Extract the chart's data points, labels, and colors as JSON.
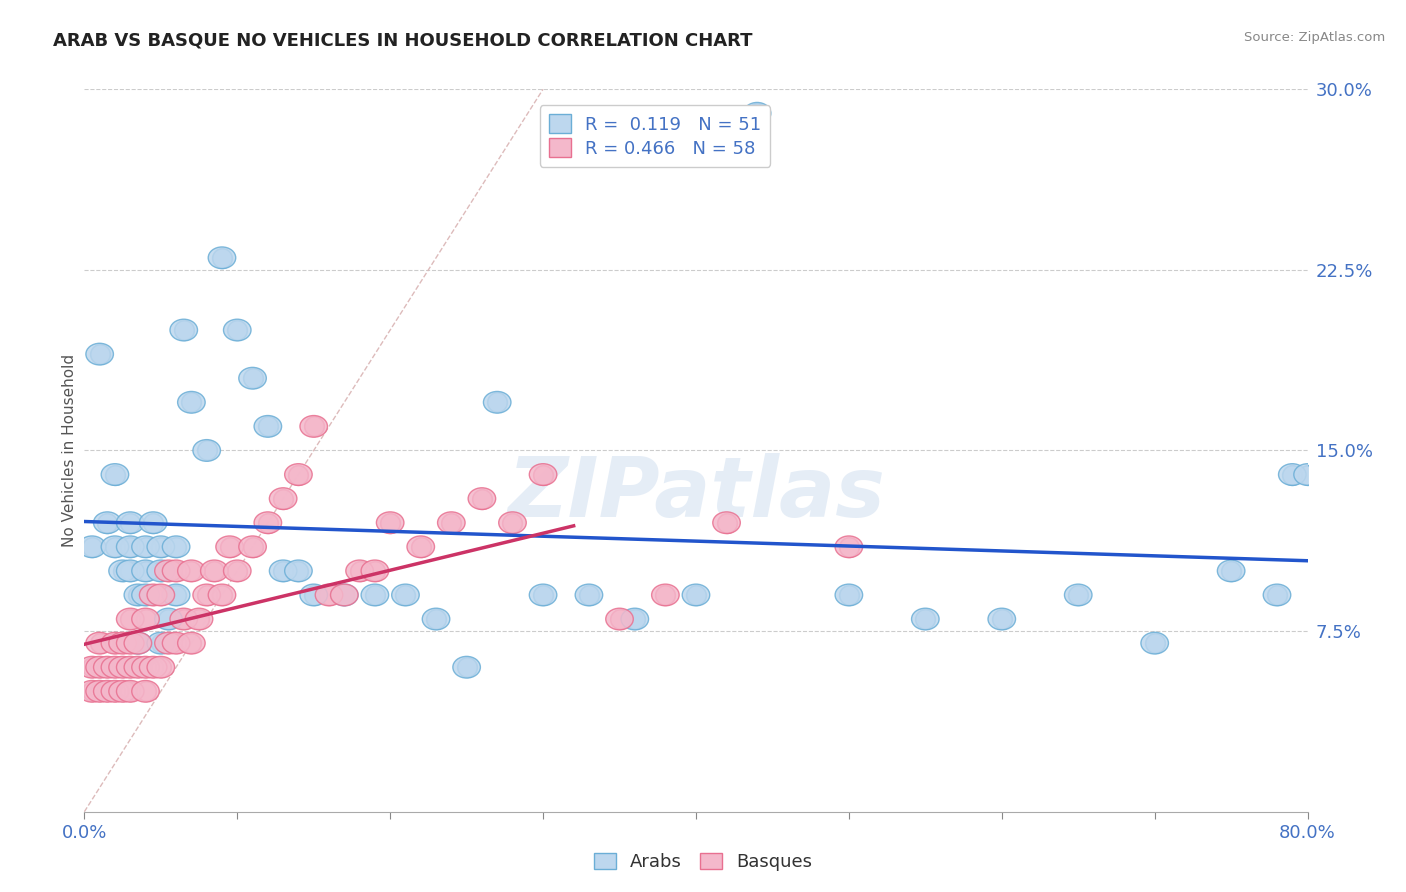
{
  "title": "ARAB VS BASQUE NO VEHICLES IN HOUSEHOLD CORRELATION CHART",
  "source": "Source: ZipAtlas.com",
  "ylabel": "No Vehicles in Household",
  "xlim": [
    0.0,
    0.8
  ],
  "ylim": [
    0.0,
    0.3
  ],
  "ytick_positions": [
    0.075,
    0.15,
    0.225,
    0.3
  ],
  "ytick_labels": [
    "7.5%",
    "15.0%",
    "22.5%",
    "30.0%"
  ],
  "grid_color": "#cccccc",
  "background_color": "#ffffff",
  "arab_color": "#6baed6",
  "arab_fill": "#bdd7ee",
  "basque_color": "#e87090",
  "basque_fill": "#f4b8cb",
  "diagonal_color": "#ddbbbb",
  "arab_R": 0.119,
  "arab_N": 51,
  "basque_R": 0.466,
  "basque_N": 58,
  "legend_text_color": "#4472c4",
  "watermark": "ZIPatlas",
  "arab_line_color": "#2255cc",
  "basque_line_color": "#cc3366",
  "arab_scatter_x": [
    0.005,
    0.01,
    0.015,
    0.02,
    0.02,
    0.025,
    0.03,
    0.03,
    0.03,
    0.035,
    0.035,
    0.04,
    0.04,
    0.04,
    0.045,
    0.05,
    0.05,
    0.05,
    0.055,
    0.06,
    0.06,
    0.065,
    0.07,
    0.08,
    0.09,
    0.1,
    0.11,
    0.12,
    0.13,
    0.14,
    0.15,
    0.17,
    0.19,
    0.21,
    0.23,
    0.25,
    0.27,
    0.3,
    0.33,
    0.36,
    0.4,
    0.44,
    0.5,
    0.55,
    0.6,
    0.65,
    0.7,
    0.75,
    0.78,
    0.79,
    0.8
  ],
  "arab_scatter_y": [
    0.11,
    0.19,
    0.12,
    0.14,
    0.11,
    0.1,
    0.12,
    0.11,
    0.1,
    0.09,
    0.07,
    0.11,
    0.1,
    0.09,
    0.12,
    0.11,
    0.1,
    0.07,
    0.08,
    0.11,
    0.09,
    0.2,
    0.17,
    0.15,
    0.23,
    0.2,
    0.18,
    0.16,
    0.1,
    0.1,
    0.09,
    0.09,
    0.09,
    0.09,
    0.08,
    0.06,
    0.17,
    0.09,
    0.09,
    0.08,
    0.09,
    0.29,
    0.09,
    0.08,
    0.08,
    0.09,
    0.07,
    0.1,
    0.09,
    0.14,
    0.14
  ],
  "basque_scatter_x": [
    0.005,
    0.005,
    0.01,
    0.01,
    0.01,
    0.015,
    0.015,
    0.02,
    0.02,
    0.02,
    0.025,
    0.025,
    0.025,
    0.03,
    0.03,
    0.03,
    0.03,
    0.035,
    0.035,
    0.04,
    0.04,
    0.04,
    0.045,
    0.045,
    0.05,
    0.05,
    0.055,
    0.055,
    0.06,
    0.06,
    0.065,
    0.07,
    0.07,
    0.075,
    0.08,
    0.085,
    0.09,
    0.095,
    0.1,
    0.11,
    0.12,
    0.13,
    0.14,
    0.15,
    0.16,
    0.17,
    0.18,
    0.19,
    0.2,
    0.22,
    0.24,
    0.26,
    0.28,
    0.3,
    0.35,
    0.38,
    0.42,
    0.5
  ],
  "basque_scatter_y": [
    0.05,
    0.06,
    0.05,
    0.06,
    0.07,
    0.05,
    0.06,
    0.05,
    0.06,
    0.07,
    0.05,
    0.06,
    0.07,
    0.05,
    0.06,
    0.07,
    0.08,
    0.06,
    0.07,
    0.05,
    0.06,
    0.08,
    0.06,
    0.09,
    0.06,
    0.09,
    0.07,
    0.1,
    0.07,
    0.1,
    0.08,
    0.07,
    0.1,
    0.08,
    0.09,
    0.1,
    0.09,
    0.11,
    0.1,
    0.11,
    0.12,
    0.13,
    0.14,
    0.16,
    0.09,
    0.09,
    0.1,
    0.1,
    0.12,
    0.11,
    0.12,
    0.13,
    0.12,
    0.14,
    0.08,
    0.09,
    0.12,
    0.11
  ]
}
